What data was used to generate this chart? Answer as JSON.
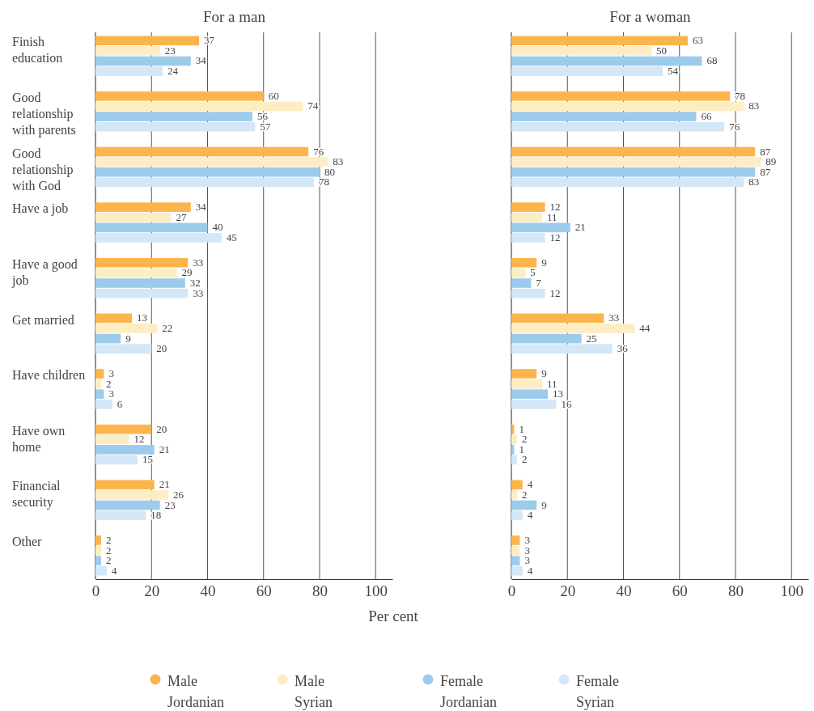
{
  "chart_data": [
    {
      "type": "bar",
      "orientation": "horizontal",
      "title": "For a man",
      "xlabel": "Per cent",
      "categories": [
        "Finish education",
        "Good relationship with parents",
        "Good relationship with God",
        "Have a job",
        "Have a good job",
        "Get married",
        "Have children",
        "Have own home",
        "Financial security",
        "Other"
      ],
      "series": [
        {
          "name": "Male Jordanian",
          "color": "#fbb54c",
          "values": [
            37,
            60,
            76,
            34,
            33,
            13,
            3,
            20,
            21,
            2
          ]
        },
        {
          "name": "Male Syrian",
          "color": "#fdedc4",
          "values": [
            23,
            74,
            83,
            27,
            29,
            22,
            2,
            12,
            26,
            2
          ]
        },
        {
          "name": "Female Jordanian",
          "color": "#9ccbec",
          "values": [
            34,
            56,
            80,
            40,
            32,
            9,
            3,
            21,
            23,
            2
          ]
        },
        {
          "name": "Female Syrian",
          "color": "#d3e7f7",
          "values": [
            24,
            57,
            78,
            45,
            33,
            20,
            6,
            15,
            18,
            4
          ]
        }
      ],
      "xlim": [
        0,
        106
      ],
      "xticks": [
        0,
        20,
        40,
        60,
        80,
        100
      ],
      "grid": "x",
      "data_labels": true,
      "legend": "bottom"
    },
    {
      "type": "bar",
      "orientation": "horizontal",
      "title": "For a woman",
      "categories": [
        null,
        null,
        null,
        null,
        null,
        null,
        null,
        null,
        null,
        null
      ],
      "series": [
        {
          "color": "#fbb54c",
          "values": [
            63,
            78,
            87,
            12,
            9,
            33,
            9,
            1,
            4,
            3
          ]
        },
        {
          "color": "#fdedc4",
          "values": [
            50,
            83,
            89,
            11,
            5,
            44,
            11,
            2,
            2,
            3
          ]
        },
        {
          "color": "#9ccbec",
          "values": [
            68,
            66,
            87,
            21,
            7,
            25,
            13,
            1,
            9,
            3
          ]
        },
        {
          "color": "#d3e7f7",
          "values": [
            54,
            76,
            83,
            12,
            12,
            36,
            16,
            2,
            4,
            4
          ]
        }
      ],
      "xlim": [
        0,
        106
      ],
      "xticks": [
        0,
        20,
        40,
        60,
        80,
        100
      ],
      "grid": "x",
      "data_labels": true,
      "tick_labels": "x"
    }
  ]
}
